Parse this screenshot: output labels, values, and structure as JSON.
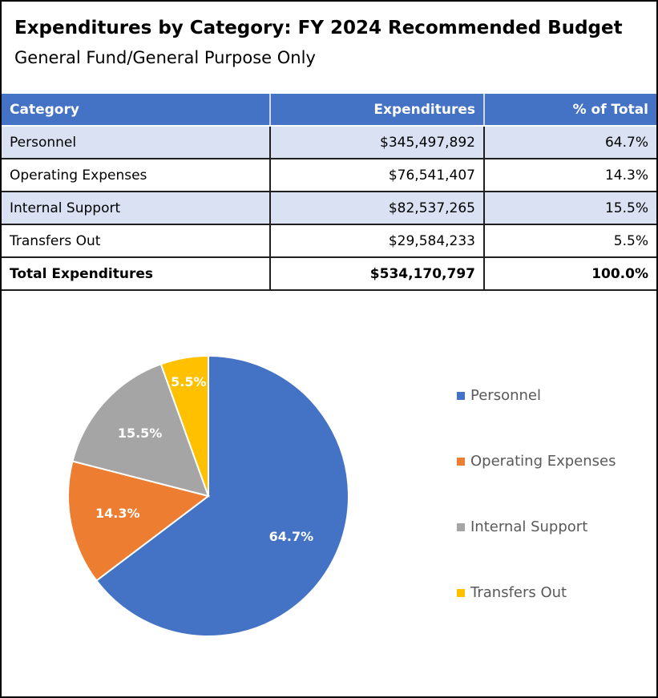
{
  "header": {
    "title": "Expenditures by Category: FY 2024 Recommended Budget",
    "subtitle": "General Fund/General Purpose Only"
  },
  "table": {
    "columns": [
      "Category",
      "Expenditures",
      "% of Total"
    ],
    "rows": [
      [
        "Personnel",
        "$345,497,892",
        "64.7%"
      ],
      [
        "Operating Expenses",
        "$76,541,407",
        "14.3%"
      ],
      [
        "Internal Support",
        "$82,537,265",
        "15.5%"
      ],
      [
        "Transfers Out",
        "$29,584,233",
        "5.5%"
      ]
    ],
    "total": [
      "Total Expenditures",
      "$534,170,797",
      "100.0%"
    ]
  },
  "chart_data": {
    "type": "pie",
    "categories": [
      "Personnel",
      "Operating Expenses",
      "Internal Support",
      "Transfers Out"
    ],
    "values": [
      64.7,
      14.3,
      15.5,
      5.5
    ],
    "value_labels": [
      "64.7%",
      "14.3%",
      "15.5%",
      "5.5%"
    ],
    "colors": [
      "#4472c4",
      "#ed7d31",
      "#a5a5a5",
      "#ffc000"
    ],
    "legend": "right"
  }
}
